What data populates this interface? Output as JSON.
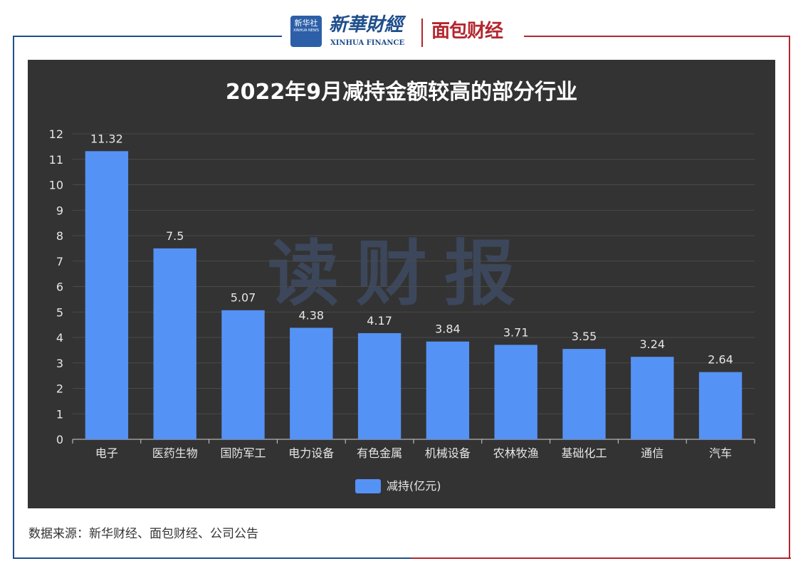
{
  "header": {
    "xinhua_badge": "新华社",
    "xinhua_badge_en": "XINHUA NEWS",
    "xinhua_finance_cn": "新華財經",
    "xinhua_finance_en": "XINHUA FINANCE",
    "mianbao_logo": "面包财经"
  },
  "watermark": "读财报",
  "chart_data": {
    "type": "bar",
    "title": "2022年9月减持金额较高的部分行业",
    "categories": [
      "电子",
      "医药生物",
      "国防军工",
      "电力设备",
      "有色金属",
      "机械设备",
      "农林牧渔",
      "基础化工",
      "通信",
      "汽车"
    ],
    "series": [
      {
        "name": "减持(亿元)",
        "values": [
          11.32,
          7.5,
          5.07,
          4.38,
          4.17,
          3.84,
          3.71,
          3.55,
          3.24,
          2.64
        ]
      }
    ],
    "data_labels": [
      "11.32",
      "7.5",
      "5.07",
      "4.38",
      "4.17",
      "3.84",
      "3.71",
      "3.55",
      "3.24",
      "2.64"
    ],
    "yticks": [
      0,
      1,
      2,
      3,
      4,
      5,
      6,
      7,
      8,
      9,
      10,
      11,
      12
    ],
    "ylim": [
      0,
      12
    ],
    "xlabel": "",
    "ylabel": "",
    "grid": true,
    "legend": "bottom-center",
    "bar_color": "#5592f5",
    "background": "#333333"
  },
  "legend": {
    "label": "减持(亿元)"
  },
  "source": "数据来源：新华财经、面包财经、公司公告"
}
